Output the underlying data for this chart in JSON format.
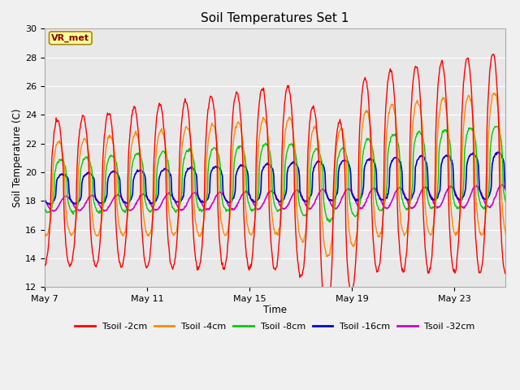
{
  "title": "Soil Temperatures Set 1",
  "xlabel": "Time",
  "ylabel": "Soil Temperature (C)",
  "ylim": [
    12,
    30
  ],
  "yticks": [
    12,
    14,
    16,
    18,
    20,
    22,
    24,
    26,
    28,
    30
  ],
  "fig_bg_color": "#f0f0f0",
  "plot_bg_color": "#e8e8e8",
  "series_colors": {
    "Tsoil -2cm": "#ff0000",
    "Tsoil -4cm": "#ff8800",
    "Tsoil -8cm": "#00cc00",
    "Tsoil -16cm": "#0000cc",
    "Tsoil -32cm": "#cc00cc"
  },
  "annotation_text": "VR_met",
  "annotation_box_color": "#ffff99",
  "annotation_border_color": "#aa8800",
  "x_tick_labels": [
    "May 7",
    "May 11",
    "May 15",
    "May 19",
    "May 23"
  ],
  "x_tick_positions": [
    0,
    4,
    8,
    12,
    16
  ],
  "total_days": 18,
  "points_per_day": 48,
  "figwidth": 6.4,
  "figheight": 4.8,
  "dpi": 100
}
